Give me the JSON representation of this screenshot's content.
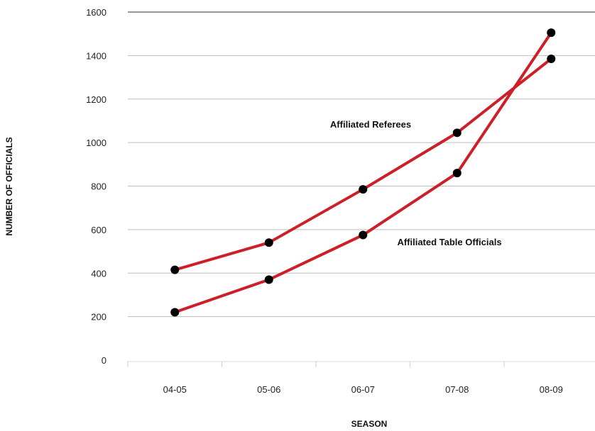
{
  "chart_data": {
    "type": "line",
    "title": "",
    "xlabel": "SEASON",
    "ylabel": "NUMBER OF OFFICIALS",
    "categories": [
      "04-05",
      "05-06",
      "06-07",
      "07-08",
      "08-09"
    ],
    "ylim": [
      0,
      1600
    ],
    "yticks": [
      0,
      200,
      400,
      600,
      800,
      1000,
      1200,
      1400,
      1600
    ],
    "grid": true,
    "series": [
      {
        "name": "Affiliated Referees",
        "values": [
          415,
          540,
          785,
          1045,
          1385
        ]
      },
      {
        "name": "Affiliated Table Officials",
        "values": [
          220,
          370,
          575,
          860,
          1505
        ]
      }
    ],
    "colors": {
      "line": "#cc1f27",
      "marker": "#000000",
      "grid": "#bdbdbd",
      "top_line": "#777777"
    }
  }
}
